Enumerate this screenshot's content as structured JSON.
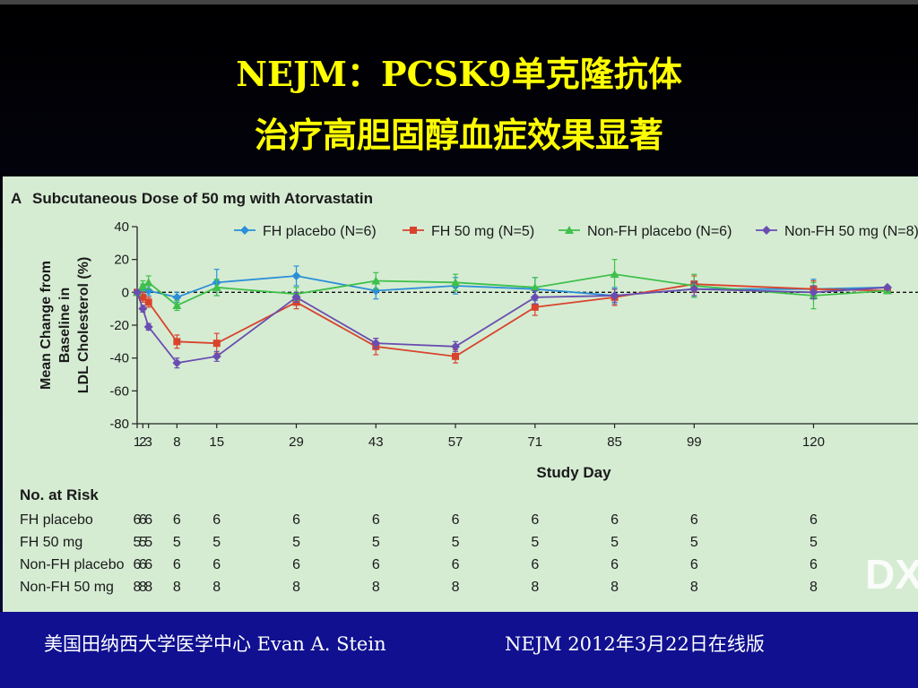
{
  "slide": {
    "title_line1": "NEJM：PCSK9单克隆抗体",
    "title_line2": "治疗高胆固醇血症效果显著",
    "footer_left": "美国田纳西大学医学中心 Evan A. Stein",
    "footer_right": "NEJM 2012年3月22日在线版",
    "watermark": "DX"
  },
  "colors": {
    "title": "#ffff00",
    "panel_bg": "#d5ecd3",
    "footer_bg": "#101090"
  },
  "chart_data": {
    "type": "line",
    "panel_label": "A",
    "title": "Subcutaneous Dose of 50 mg with Atorvastatin",
    "ylabel": [
      "Mean Change from",
      "Baseline in",
      "LDL Cholesterol (%)"
    ],
    "xlabel": "Study Day",
    "ylim": [
      -80,
      40
    ],
    "yticks": [
      40,
      20,
      0,
      -20,
      -40,
      -60,
      -80
    ],
    "xticks": [
      1,
      2,
      3,
      8,
      15,
      29,
      43,
      57,
      71,
      85,
      99,
      120
    ],
    "xticklabels": [
      "1",
      "2",
      "3",
      "8",
      "15",
      "29",
      "43",
      "57",
      "71",
      "85",
      "99",
      "120"
    ],
    "xlim": [
      0,
      132
    ],
    "reference_line_y": 0,
    "legend_position": "top",
    "series": [
      {
        "name": "FH placebo (N=6)",
        "color": "#2b8fd8",
        "marker": "diamond",
        "x": [
          1,
          2,
          3,
          8,
          15,
          29,
          43,
          57,
          71,
          85,
          99,
          120,
          133
        ],
        "y": [
          0,
          2,
          1,
          -3,
          6,
          10,
          1,
          4,
          2,
          -2,
          2,
          2,
          3
        ],
        "err": [
          0,
          3,
          3,
          3,
          8,
          6,
          5,
          5,
          7,
          5,
          5,
          6,
          0
        ]
      },
      {
        "name": "FH 50 mg (N=5)",
        "color": "#d9432c",
        "marker": "square",
        "x": [
          1,
          2,
          3,
          8,
          15,
          29,
          43,
          57,
          71,
          85,
          99,
          120,
          133
        ],
        "y": [
          0,
          -3,
          -6,
          -30,
          -31,
          -6,
          -33,
          -39,
          -9,
          -3,
          5,
          2,
          1
        ],
        "err": [
          0,
          3,
          3,
          4,
          6,
          4,
          5,
          4,
          5,
          5,
          5,
          5,
          0
        ]
      },
      {
        "name": "Non-FH placebo (N=6)",
        "color": "#3fc04a",
        "marker": "triangle",
        "x": [
          1,
          2,
          3,
          8,
          15,
          29,
          43,
          57,
          71,
          85,
          99,
          120,
          133
        ],
        "y": [
          0,
          4,
          6,
          -8,
          3,
          -1,
          7,
          6,
          3,
          11,
          4,
          -2,
          1
        ],
        "err": [
          0,
          3,
          4,
          3,
          5,
          4,
          5,
          5,
          6,
          9,
          7,
          8,
          0
        ]
      },
      {
        "name": "Non-FH 50 mg (N=8)",
        "color": "#6a4db0",
        "marker": "diamond",
        "x": [
          1,
          2,
          3,
          8,
          15,
          29,
          43,
          57,
          71,
          85,
          99,
          120,
          133
        ],
        "y": [
          0,
          -10,
          -21,
          -43,
          -39,
          -3,
          -31,
          -33,
          -3,
          -2,
          2,
          0,
          3
        ],
        "err": [
          0,
          2,
          2,
          3,
          3,
          3,
          3,
          3,
          4,
          4,
          4,
          4,
          0
        ]
      }
    ],
    "at_risk": {
      "header": "No. at Risk",
      "columns_x": [
        1,
        2,
        3,
        8,
        15,
        29,
        43,
        57,
        71,
        85,
        99,
        120
      ],
      "rows": [
        {
          "label": "FH placebo",
          "values": [
            "6",
            "6",
            "6",
            "6",
            "6",
            "6",
            "6",
            "6",
            "6",
            "6",
            "6",
            "6"
          ]
        },
        {
          "label": "FH 50 mg",
          "values": [
            "5",
            "5",
            "5",
            "5",
            "5",
            "5",
            "5",
            "5",
            "5",
            "5",
            "5",
            "5"
          ]
        },
        {
          "label": "Non-FH placebo",
          "values": [
            "6",
            "6",
            "6",
            "6",
            "6",
            "6",
            "6",
            "6",
            "6",
            "6",
            "6",
            "6"
          ]
        },
        {
          "label": "Non-FH 50 mg",
          "values": [
            "8",
            "8",
            "8",
            "8",
            "8",
            "8",
            "8",
            "8",
            "8",
            "8",
            "8",
            "8"
          ]
        }
      ]
    }
  }
}
